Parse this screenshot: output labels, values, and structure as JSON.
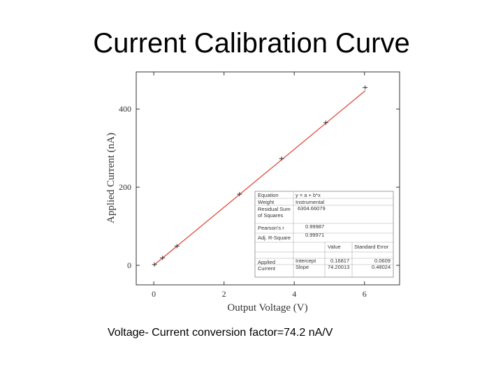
{
  "slide": {
    "title": "Current Calibration Curve",
    "caption": "Voltage- Current conversion factor=74.2 nA/V"
  },
  "chart_data": {
    "type": "scatter",
    "title": "",
    "xlabel": "Output Voltage (V)",
    "ylabel": "Applied Current (nA)",
    "xlim": [
      -0.5,
      7.0
    ],
    "ylim": [
      -50,
      495
    ],
    "xticks": [
      0,
      2,
      4,
      6
    ],
    "yticks": [
      0,
      200,
      400
    ],
    "grid": false,
    "legend": "none",
    "series": [
      {
        "points": [
          [
            0.02,
            2
          ],
          [
            0.25,
            19
          ],
          [
            0.66,
            49
          ],
          [
            2.44,
            182
          ],
          [
            3.64,
            273
          ],
          [
            4.9,
            365
          ],
          [
            6.02,
            455
          ]
        ],
        "color": "#333333",
        "marker": "cross"
      }
    ],
    "fit": {
      "intercept": 0.16817,
      "slope": 74.20013,
      "x_range": [
        0,
        6.02
      ],
      "color": "#e0483c"
    },
    "fit_table": {
      "rows": [
        {
          "label": "Equation",
          "value": "y = a + b*x"
        },
        {
          "label": "Weight",
          "value": "Instrumental"
        },
        {
          "label": "Residual Sum of Squares",
          "value": "6304.66079"
        },
        {
          "label": "Pearson's r",
          "value": "0.99987"
        },
        {
          "label": "Adj. R-Square",
          "value": "0.99971"
        }
      ],
      "header": [
        "Value",
        "Standard Error"
      ],
      "group_label": "Applied Current",
      "params": [
        {
          "name": "Intercept",
          "value": "0.16817",
          "error": "0.0609"
        },
        {
          "name": "Slope",
          "value": "74.20013",
          "error": "0.48024"
        }
      ]
    }
  }
}
